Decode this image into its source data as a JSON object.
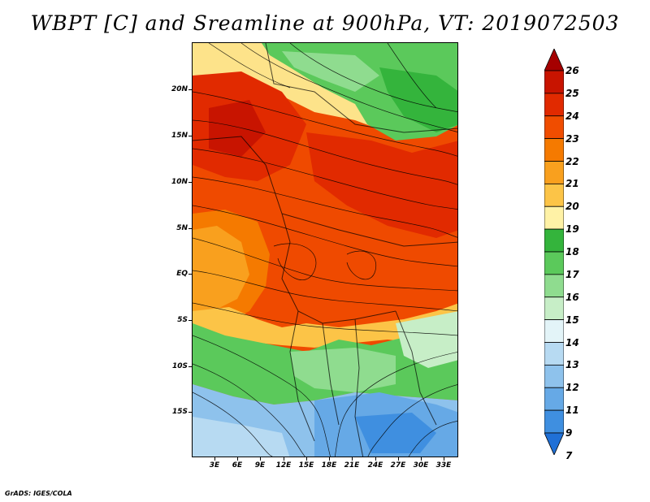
{
  "title": "WBPT [C] and Sreamline at 900hPa, VT: 2019072503",
  "footer": "GrADS: IGES/COLA",
  "map": {
    "lat_labels": [
      "20N",
      "15N",
      "10N",
      "5N",
      "EQ",
      "5S",
      "10S",
      "15S"
    ],
    "lon_labels": [
      "3E",
      "6E",
      "9E",
      "12E",
      "15E",
      "18E",
      "21E",
      "24E",
      "27E",
      "30E",
      "33E"
    ]
  },
  "colorbar": {
    "levels": [
      "26",
      "25",
      "24",
      "23",
      "22",
      "21",
      "20",
      "19",
      "18",
      "17",
      "16",
      "15",
      "14",
      "13",
      "12",
      "11",
      "9",
      "7"
    ],
    "colors": [
      "#a50000",
      "#c81400",
      "#e12a00",
      "#f04d00",
      "#f57a00",
      "#f9a01e",
      "#fcc447",
      "#fff2a6",
      "#34b43c",
      "#5bc95b",
      "#8fdc8f",
      "#c7eec7",
      "#e3f4f8",
      "#b7daf2",
      "#8ec2ec",
      "#66a9e6",
      "#3f8fe0",
      "#2070d6"
    ]
  }
}
